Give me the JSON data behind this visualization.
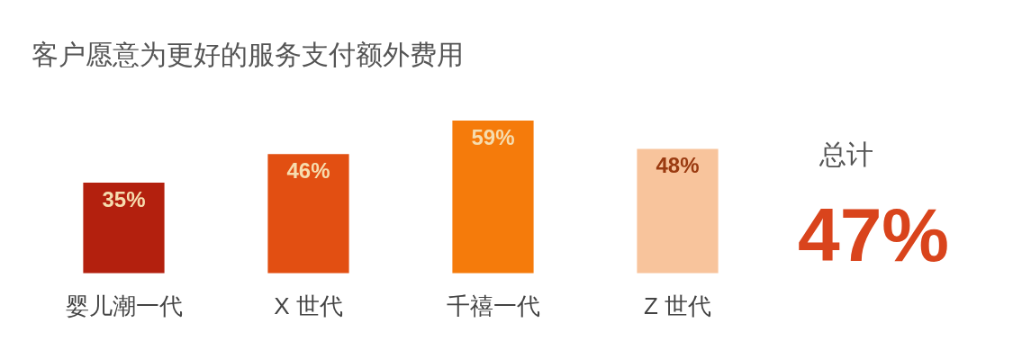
{
  "chart_data": {
    "type": "bar",
    "title": "客户愿意为更好的服务支付额外费用",
    "categories": [
      "婴儿潮一代",
      "X 世代",
      "千禧一代",
      "Z 世代"
    ],
    "values": [
      35,
      46,
      59,
      48
    ],
    "colors": [
      "#b3200e",
      "#e24f12",
      "#f57b0b",
      "#f8c49c"
    ],
    "data_labels": true,
    "value_labels": [
      "35%",
      "46%",
      "59%",
      "48%"
    ],
    "grid": false,
    "legend": false,
    "annotations": [
      "总计",
      "47%"
    ]
  }
}
